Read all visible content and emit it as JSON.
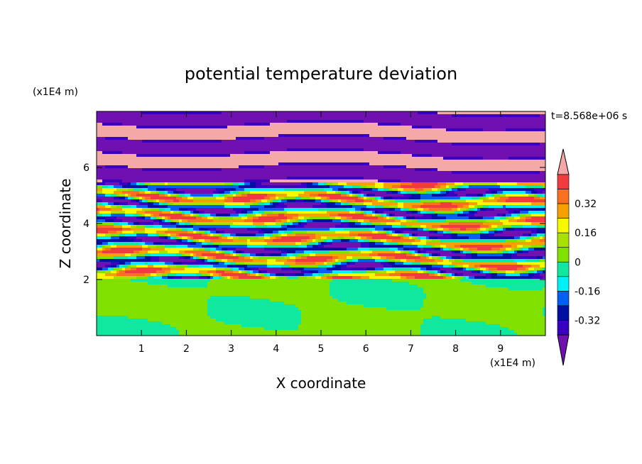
{
  "chart_data": {
    "type": "heatmap",
    "title": "potential temperature deviation",
    "xlabel": "X coordinate",
    "ylabel": "Z coordinate",
    "x_unit": "(x1E4 m)",
    "y_unit": "(x1E4 m)",
    "time_label": "t=8.568e+06 s",
    "xlim": [
      0,
      10
    ],
    "ylim": [
      0,
      8
    ],
    "x_ticks": [
      "1",
      "2",
      "3",
      "4",
      "5",
      "6",
      "7",
      "8",
      "9"
    ],
    "y_ticks": [
      "2",
      "4",
      "6"
    ],
    "colorbar": {
      "levels": [
        {
          "label": "",
          "color": "#f4a8a8"
        },
        {
          "label": "",
          "color": "#f03c3c"
        },
        {
          "label": "0.32",
          "color": "#f87020"
        },
        {
          "label": "",
          "color": "#f8a000"
        },
        {
          "label": "0.16",
          "color": "#f8f800"
        },
        {
          "label": "",
          "color": "#a8e000"
        },
        {
          "label": "0",
          "color": "#80e000"
        },
        {
          "label": "",
          "color": "#10e8a0"
        },
        {
          "label": "-0.16",
          "color": "#00f0f8"
        },
        {
          "label": "",
          "color": "#0060f0"
        },
        {
          "label": "-0.32",
          "color": "#0010a0"
        },
        {
          "label": "",
          "color": "#3800c0"
        },
        {
          "label": "",
          "color": "#7010b0"
        }
      ]
    }
  }
}
